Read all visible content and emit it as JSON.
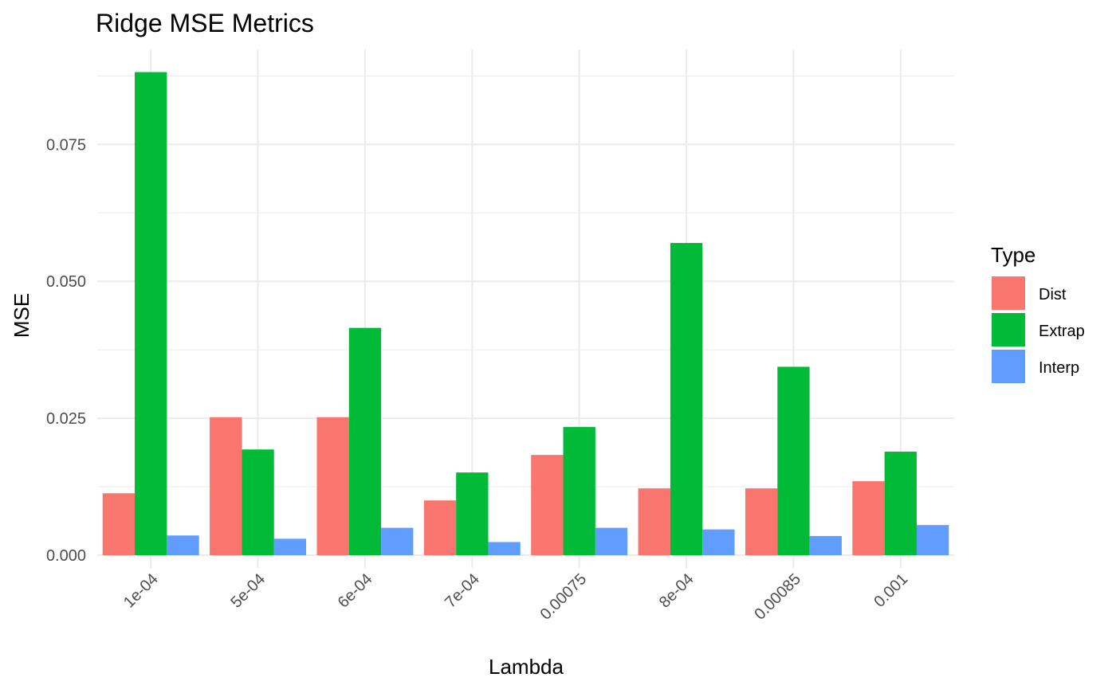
{
  "chart_data": {
    "type": "bar",
    "title": "Ridge MSE Metrics",
    "xlabel": "Lambda",
    "ylabel": "MSE",
    "categories": [
      "1e-04",
      "5e-04",
      "6e-04",
      "7e-04",
      "0.00075",
      "8e-04",
      "0.00085",
      "0.001"
    ],
    "series": [
      {
        "name": "Dist",
        "color": "#F8766D",
        "values": [
          0.0113,
          0.0252,
          0.0252,
          0.01,
          0.0183,
          0.0122,
          0.0122,
          0.0135
        ]
      },
      {
        "name": "Extrap",
        "color": "#00BA38",
        "values": [
          0.0882,
          0.0193,
          0.0415,
          0.0151,
          0.0234,
          0.057,
          0.0344,
          0.0189
        ]
      },
      {
        "name": "Interp",
        "color": "#619CFF",
        "values": [
          0.0036,
          0.003,
          0.005,
          0.0024,
          0.005,
          0.0047,
          0.0035,
          0.0055
        ]
      }
    ],
    "y_ticks": [
      "0.000",
      "0.025",
      "0.050",
      "0.075"
    ],
    "ylim": [
      -0.0029,
      0.0885
    ],
    "legend_title": "Type",
    "legend_position": "right",
    "grid": true
  }
}
